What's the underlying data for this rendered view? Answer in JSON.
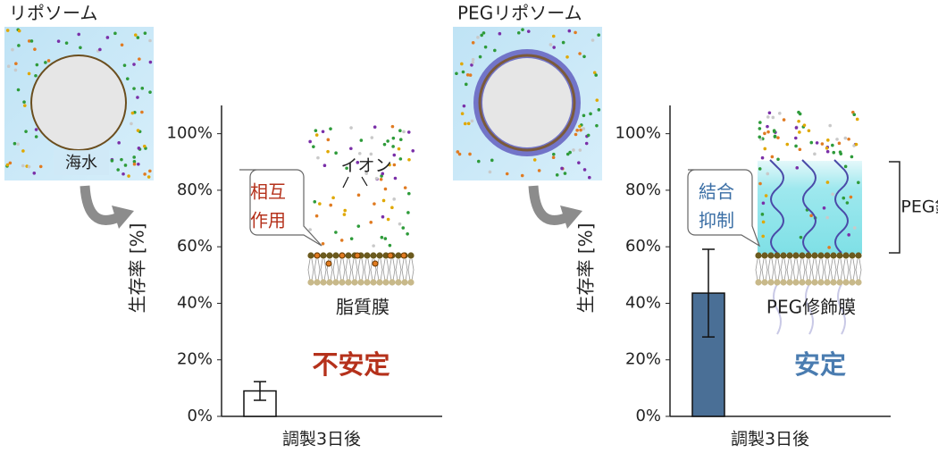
{
  "chart_data": [
    {
      "type": "bar",
      "title": "リポソーム",
      "categories": [
        "調製3日後"
      ],
      "values": [
        9
      ],
      "errors": [
        3.3
      ],
      "color": "#ffffff",
      "ylabel": "生存率 [%]",
      "ylim": [
        0,
        110
      ],
      "yticks": [
        {
          "value": 0,
          "label": "0%"
        },
        {
          "value": 20,
          "label": "20%"
        },
        {
          "value": 40,
          "label": "40%"
        },
        {
          "value": 60,
          "label": "60%"
        },
        {
          "value": 80,
          "label": "80%"
        },
        {
          "value": 100,
          "label": "100%"
        }
      ],
      "labels": {
        "medium": "海水",
        "callout": [
          "相互",
          "作用"
        ],
        "ions": "イオン",
        "membrane": "脂質膜",
        "verdict": "不安定"
      }
    },
    {
      "type": "bar",
      "title": "PEGリポソーム",
      "categories": [
        "調製3日後"
      ],
      "values": [
        43.6
      ],
      "errors": [
        15.5
      ],
      "color": "#4a6f96",
      "ylabel": "生存率 [%]",
      "ylim": [
        0,
        110
      ],
      "yticks": [
        {
          "value": 0,
          "label": "0%"
        },
        {
          "value": 20,
          "label": "20%"
        },
        {
          "value": 40,
          "label": "40%"
        },
        {
          "value": 60,
          "label": "60%"
        },
        {
          "value": 80,
          "label": "80%"
        },
        {
          "value": 100,
          "label": "100%"
        }
      ],
      "labels": {
        "callout": [
          "結合",
          "抑制"
        ],
        "chain": "PEG鎖",
        "membrane": "PEG修飾膜",
        "verdict": "安定"
      }
    }
  ]
}
